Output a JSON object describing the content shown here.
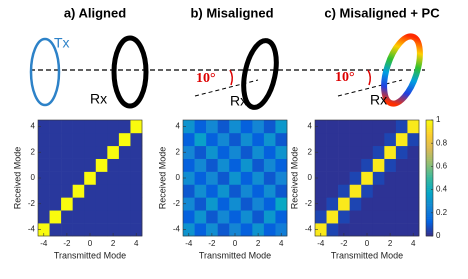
{
  "diagram": {
    "panels": [
      "a) Aligned",
      "b) Misaligned",
      "c) Misaligned + PC"
    ],
    "tx_label": "Tx",
    "rx_labels": [
      "Rx",
      "Rx",
      "Rx"
    ],
    "angle_labels": [
      "10°",
      "10°"
    ]
  },
  "chart_data": [
    {
      "type": "heatmap",
      "xlabel": "Transmitted Mode",
      "ylabel": "Received Mode",
      "x": [
        -4,
        -3,
        -2,
        -1,
        0,
        1,
        2,
        3,
        4
      ],
      "y": [
        -4,
        -3,
        -2,
        -1,
        0,
        1,
        2,
        3,
        4
      ],
      "z": [
        [
          1,
          0.03,
          0.03,
          0.03,
          0.03,
          0.03,
          0.03,
          0.03,
          0.03
        ],
        [
          0.03,
          1,
          0.03,
          0.03,
          0.03,
          0.03,
          0.03,
          0.03,
          0.03
        ],
        [
          0.03,
          0.03,
          1,
          0.03,
          0.03,
          0.03,
          0.03,
          0.03,
          0.03
        ],
        [
          0.03,
          0.03,
          0.03,
          1,
          0.03,
          0.03,
          0.03,
          0.03,
          0.03
        ],
        [
          0.03,
          0.03,
          0.03,
          0.03,
          1,
          0.03,
          0.03,
          0.03,
          0.03
        ],
        [
          0.03,
          0.03,
          0.03,
          0.03,
          0.03,
          1,
          0.03,
          0.03,
          0.03
        ],
        [
          0.03,
          0.03,
          0.03,
          0.03,
          0.03,
          0.03,
          1,
          0.03,
          0.03
        ],
        [
          0.03,
          0.03,
          0.03,
          0.03,
          0.03,
          0.03,
          0.03,
          1,
          0.03
        ],
        [
          0.03,
          0.03,
          0.03,
          0.03,
          0.03,
          0.03,
          0.03,
          0.03,
          1
        ]
      ],
      "xlim": [
        -4.5,
        4.5
      ],
      "ylim": [
        -4.5,
        4.5
      ],
      "xticks": [
        -4,
        -2,
        0,
        2,
        4
      ],
      "yticks": [
        -4,
        -2,
        0,
        2,
        4
      ],
      "zlim": [
        0,
        1
      ],
      "colormap": [
        "#352a87",
        "#0363e1",
        "#1485d4",
        "#06a7c6",
        "#38b99e",
        "#92bf73",
        "#d9ba56",
        "#fcce2e",
        "#f9fb0e"
      ]
    },
    {
      "type": "heatmap",
      "xlabel": "Transmitted Mode",
      "ylabel": "Received Mode",
      "x": [
        -4,
        -3,
        -2,
        -1,
        0,
        1,
        2,
        3,
        4
      ],
      "y": [
        -4,
        -3,
        -2,
        -1,
        0,
        1,
        2,
        3,
        4
      ],
      "z": [
        [
          0.3,
          0.12,
          0.28,
          0.1,
          0.25,
          0.12,
          0.3,
          0.12,
          0.22
        ],
        [
          0.12,
          0.3,
          0.1,
          0.26,
          0.12,
          0.28,
          0.1,
          0.32,
          0.12
        ],
        [
          0.26,
          0.1,
          0.32,
          0.12,
          0.28,
          0.1,
          0.25,
          0.12,
          0.38
        ],
        [
          0.1,
          0.28,
          0.12,
          0.3,
          0.1,
          0.26,
          0.12,
          0.28,
          0.1
        ],
        [
          0.28,
          0.12,
          0.26,
          0.1,
          0.3,
          0.12,
          0.28,
          0.1,
          0.25
        ],
        [
          0.12,
          0.26,
          0.1,
          0.28,
          0.12,
          0.3,
          0.1,
          0.26,
          0.12
        ],
        [
          0.25,
          0.1,
          0.3,
          0.12,
          0.26,
          0.1,
          0.28,
          0.12,
          0.3
        ],
        [
          0.12,
          0.35,
          0.12,
          0.26,
          0.1,
          0.28,
          0.12,
          0.3,
          0.1
        ],
        [
          0.3,
          0.12,
          0.26,
          0.1,
          0.28,
          0.12,
          0.25,
          0.1,
          0.32
        ]
      ],
      "xlim": [
        -4.5,
        4.5
      ],
      "ylim": [
        -4.5,
        4.5
      ],
      "xticks": [
        -4,
        -2,
        0,
        2,
        4
      ],
      "yticks": [
        -4,
        -2,
        0,
        2,
        4
      ],
      "zlim": [
        0,
        1
      ],
      "colormap": [
        "#352a87",
        "#0363e1",
        "#1485d4",
        "#06a7c6",
        "#38b99e",
        "#92bf73",
        "#d9ba56",
        "#fcce2e",
        "#f9fb0e"
      ]
    },
    {
      "type": "heatmap",
      "xlabel": "Transmitted Mode",
      "ylabel": "Received Mode",
      "x": [
        -4,
        -3,
        -2,
        -1,
        0,
        1,
        2,
        3,
        4
      ],
      "y": [
        -4,
        -3,
        -2,
        -1,
        0,
        1,
        2,
        3,
        4
      ],
      "z": [
        [
          0.95,
          0.06,
          0.02,
          0.02,
          0.02,
          0.02,
          0.02,
          0.02,
          0.02
        ],
        [
          0.06,
          0.95,
          0.06,
          0.02,
          0.02,
          0.02,
          0.02,
          0.02,
          0.02
        ],
        [
          0.02,
          0.06,
          0.95,
          0.06,
          0.02,
          0.02,
          0.02,
          0.02,
          0.02
        ],
        [
          0.02,
          0.02,
          0.06,
          0.95,
          0.06,
          0.02,
          0.02,
          0.02,
          0.02
        ],
        [
          0.02,
          0.02,
          0.02,
          0.06,
          0.95,
          0.06,
          0.02,
          0.02,
          0.02
        ],
        [
          0.02,
          0.02,
          0.02,
          0.02,
          0.06,
          0.95,
          0.06,
          0.02,
          0.02
        ],
        [
          0.02,
          0.02,
          0.02,
          0.02,
          0.02,
          0.06,
          0.95,
          0.06,
          0.02
        ],
        [
          0.02,
          0.02,
          0.02,
          0.02,
          0.02,
          0.02,
          0.06,
          0.95,
          0.06
        ],
        [
          0.02,
          0.02,
          0.02,
          0.02,
          0.02,
          0.02,
          0.02,
          0.06,
          0.95
        ]
      ],
      "xlim": [
        -4.5,
        4.5
      ],
      "ylim": [
        -4.5,
        4.5
      ],
      "xticks": [
        -4,
        -2,
        0,
        2,
        4
      ],
      "yticks": [
        -4,
        -2,
        0,
        2,
        4
      ],
      "zlim": [
        0,
        1
      ],
      "zticks": [
        0,
        0.2,
        0.4,
        0.6,
        0.8,
        1
      ],
      "colorbar": true,
      "colormap": [
        "#352a87",
        "#0363e1",
        "#1485d4",
        "#06a7c6",
        "#38b99e",
        "#92bf73",
        "#d9ba56",
        "#fcce2e",
        "#f9fb0e"
      ]
    }
  ]
}
